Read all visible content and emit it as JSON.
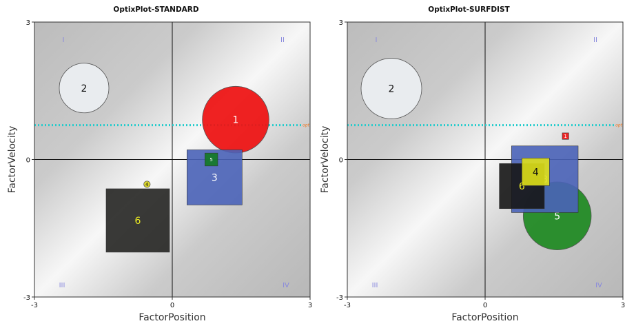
{
  "chart_data": [
    {
      "type": "scatter",
      "title": "OptixPlot-STANDARD",
      "xlabel": "FactorPosition",
      "ylabel": "FactorVelocity",
      "xlim": [
        -3,
        3
      ],
      "ylim": [
        -3,
        3
      ],
      "x_ticks": [
        "-3",
        "0",
        "3"
      ],
      "y_ticks": [
        "3",
        "0",
        "-3"
      ],
      "quadrant_labels": [
        "I",
        "II",
        "III",
        "IV"
      ],
      "reference_line": {
        "label": "opt",
        "y": 0.75,
        "color": "#22cccc"
      },
      "items": [
        {
          "label": "1",
          "shape": "circle",
          "x": 1.38,
          "y": 0.87,
          "size": 1.45,
          "fill": "#ee1111",
          "text_color": "#ffffff"
        },
        {
          "label": "2",
          "shape": "circle",
          "x": -1.92,
          "y": 1.56,
          "size": 1.08,
          "fill": "#eceff2",
          "text_color": "#111111"
        },
        {
          "label": "3",
          "shape": "square",
          "x": 0.92,
          "y": -0.39,
          "size": 1.2,
          "fill": "#4a63b8",
          "text_color": "#ffffff"
        },
        {
          "label": "4",
          "shape": "circle",
          "x": -0.55,
          "y": -0.54,
          "size": 0.14,
          "fill": "#d8d41c",
          "text_color": "#111111"
        },
        {
          "label": "5",
          "shape": "square",
          "x": 0.85,
          "y": 0.0,
          "size": 0.28,
          "fill": "#127a22",
          "text_color": "#ffffff"
        },
        {
          "label": "6",
          "shape": "square",
          "x": -0.75,
          "y": -1.33,
          "size": 1.38,
          "fill": "#252522",
          "text_color": "#eeee22"
        }
      ]
    },
    {
      "type": "scatter",
      "title": "OptixPlot-SURFDIST",
      "xlabel": "FactorPosition",
      "ylabel": "FactorVelocity",
      "xlim": [
        -3,
        3
      ],
      "ylim": [
        -3,
        3
      ],
      "x_ticks": [
        "-3",
        "0",
        "3"
      ],
      "y_ticks": [
        "3",
        "0",
        "-3"
      ],
      "quadrant_labels": [
        "I",
        "II",
        "III",
        "IV"
      ],
      "reference_line": {
        "label": "opt",
        "y": 0.75,
        "color": "#22cccc"
      },
      "items": [
        {
          "label": "2",
          "shape": "circle",
          "x": -2.04,
          "y": 1.55,
          "size": 1.32,
          "fill": "#eceff2",
          "text_color": "#111111"
        },
        {
          "label": "1",
          "shape": "square",
          "x": 1.75,
          "y": 0.51,
          "size": 0.14,
          "fill": "#ee1111",
          "text_color": "#ffffff"
        },
        {
          "label": "5",
          "shape": "circle",
          "x": 1.57,
          "y": -1.23,
          "size": 1.48,
          "fill": "#1f8a22",
          "text_color": "#ffffff"
        },
        {
          "label": "3",
          "shape": "square",
          "x": 1.3,
          "y": -0.43,
          "size": 1.45,
          "fill": "#4a63b8",
          "text_color": "#ffffff"
        },
        {
          "label": "6",
          "shape": "square",
          "x": 0.8,
          "y": -0.58,
          "size": 0.98,
          "fill": "#161616",
          "text_color": "#eeee22"
        },
        {
          "label": "4",
          "shape": "square",
          "x": 1.1,
          "y": -0.27,
          "size": 0.6,
          "fill": "#dfe01a",
          "text_color": "#111111"
        }
      ]
    }
  ]
}
